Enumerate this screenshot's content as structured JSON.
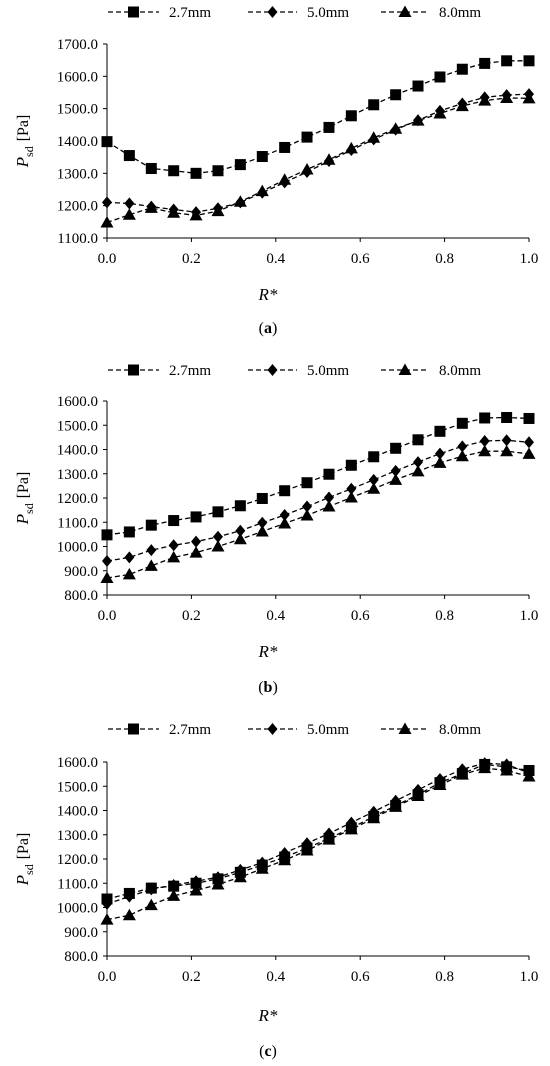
{
  "chart_data": [
    {
      "type": "line",
      "caption_open": "(",
      "caption": "a",
      "caption_close": ")",
      "ylabel_main": "P",
      "ylabel_sub": "sd",
      "ylabel_unit": "[Pa]",
      "xlabel": "R*",
      "xlim": [
        0,
        1
      ],
      "ylim": [
        1100,
        1700
      ],
      "yticks": [
        "1100.0",
        "1200.0",
        "1300.0",
        "1400.0",
        "1500.0",
        "1600.0",
        "1700.0"
      ],
      "xticks": [
        "0.0",
        "0.2",
        "0.4",
        "0.6",
        "0.8",
        "1.0"
      ],
      "legend_position": "top",
      "x": [
        0.0,
        0.053,
        0.105,
        0.158,
        0.211,
        0.263,
        0.316,
        0.368,
        0.421,
        0.474,
        0.526,
        0.579,
        0.632,
        0.684,
        0.737,
        0.789,
        0.842,
        0.895,
        0.947,
        1.0
      ],
      "series": [
        {
          "name": "2.7mm",
          "marker": "square",
          "values": [
            1398,
            1355,
            1315,
            1308,
            1300,
            1308,
            1327,
            1352,
            1380,
            1412,
            1442,
            1478,
            1512,
            1543,
            1570,
            1598,
            1622,
            1640,
            1648,
            1648
          ]
        },
        {
          "name": "5.0mm",
          "marker": "diamond",
          "values": [
            1210,
            1207,
            1197,
            1188,
            1180,
            1192,
            1210,
            1240,
            1272,
            1304,
            1338,
            1372,
            1405,
            1435,
            1464,
            1493,
            1516,
            1535,
            1542,
            1545
          ]
        },
        {
          "name": "8.0mm",
          "marker": "triangle",
          "values": [
            1148,
            1172,
            1193,
            1178,
            1170,
            1183,
            1212,
            1245,
            1280,
            1312,
            1342,
            1377,
            1410,
            1438,
            1463,
            1485,
            1508,
            1525,
            1533,
            1532
          ]
        }
      ]
    },
    {
      "type": "line",
      "caption_open": "(",
      "caption": "b",
      "caption_close": ")",
      "ylabel_main": "P",
      "ylabel_sub": "sd",
      "ylabel_unit": "[Pa]",
      "xlabel": "R*",
      "xlim": [
        0,
        1
      ],
      "ylim": [
        800,
        1600
      ],
      "yticks": [
        "800.0",
        "900.0",
        "1000.0",
        "1100.0",
        "1200.0",
        "1300.0",
        "1400.0",
        "1500.0",
        "1600.0"
      ],
      "xticks": [
        "0.0",
        "0.2",
        "0.4",
        "0.6",
        "0.8",
        "1.0"
      ],
      "legend_position": "top",
      "x": [
        0.0,
        0.053,
        0.105,
        0.158,
        0.211,
        0.263,
        0.316,
        0.368,
        0.421,
        0.474,
        0.526,
        0.579,
        0.632,
        0.684,
        0.737,
        0.789,
        0.842,
        0.895,
        0.947,
        1.0
      ],
      "series": [
        {
          "name": "2.7mm",
          "marker": "square",
          "values": [
            1048,
            1060,
            1088,
            1107,
            1122,
            1143,
            1168,
            1198,
            1230,
            1263,
            1298,
            1335,
            1370,
            1405,
            1440,
            1475,
            1508,
            1530,
            1532,
            1528
          ]
        },
        {
          "name": "5.0mm",
          "marker": "diamond",
          "values": [
            940,
            955,
            985,
            1005,
            1020,
            1040,
            1065,
            1098,
            1130,
            1165,
            1202,
            1238,
            1275,
            1312,
            1348,
            1383,
            1413,
            1435,
            1438,
            1430
          ]
        },
        {
          "name": "8.0mm",
          "marker": "triangle",
          "values": [
            870,
            885,
            920,
            955,
            975,
            1000,
            1030,
            1062,
            1095,
            1128,
            1165,
            1202,
            1238,
            1275,
            1310,
            1345,
            1372,
            1393,
            1393,
            1382
          ]
        }
      ]
    },
    {
      "type": "line",
      "caption_open": "(",
      "caption": "c",
      "caption_close": ")",
      "ylabel_main": "P",
      "ylabel_sub": "sd",
      "ylabel_unit": "[Pa]",
      "xlabel": "R*",
      "xlim": [
        0,
        1
      ],
      "ylim": [
        800,
        1600
      ],
      "yticks": [
        "800.0",
        "900.0",
        "1000.0",
        "1100.0",
        "1200.0",
        "1300.0",
        "1400.0",
        "1500.0",
        "1600.0"
      ],
      "xticks": [
        "0.0",
        "0.2",
        "0.4",
        "0.6",
        "0.8",
        "1.0"
      ],
      "legend_position": "top",
      "x": [
        0.0,
        0.053,
        0.105,
        0.158,
        0.211,
        0.263,
        0.316,
        0.368,
        0.421,
        0.474,
        0.526,
        0.579,
        0.632,
        0.684,
        0.737,
        0.789,
        0.842,
        0.895,
        0.947,
        1.0
      ],
      "series": [
        {
          "name": "2.7mm",
          "marker": "square",
          "values": [
            1035,
            1058,
            1080,
            1088,
            1100,
            1118,
            1145,
            1175,
            1208,
            1245,
            1285,
            1328,
            1375,
            1420,
            1465,
            1515,
            1552,
            1590,
            1580,
            1565
          ]
        },
        {
          "name": "5.0mm",
          "marker": "diamond",
          "values": [
            1015,
            1045,
            1075,
            1093,
            1108,
            1125,
            1155,
            1185,
            1225,
            1265,
            1305,
            1350,
            1395,
            1440,
            1485,
            1530,
            1570,
            1595,
            1590,
            1555
          ]
        },
        {
          "name": "8.0mm",
          "marker": "triangle",
          "values": [
            950,
            968,
            1010,
            1048,
            1070,
            1095,
            1125,
            1160,
            1195,
            1235,
            1280,
            1322,
            1368,
            1415,
            1460,
            1505,
            1548,
            1575,
            1565,
            1540
          ]
        }
      ]
    }
  ]
}
